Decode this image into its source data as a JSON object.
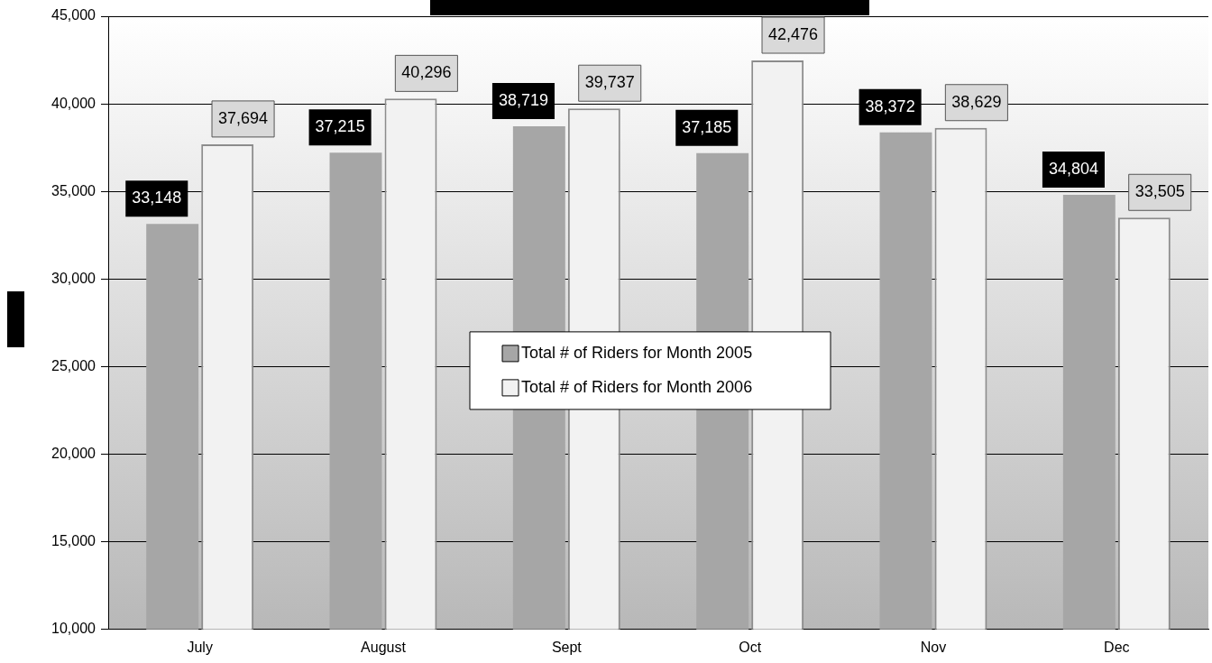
{
  "chart_data": {
    "type": "bar",
    "categories": [
      "July",
      "August",
      "Sept",
      "Oct",
      "Nov",
      "Dec"
    ],
    "series": [
      {
        "name": "Total # of Riders for Month 2005",
        "color": "#a6a6a6",
        "values": [
          33148,
          37215,
          38719,
          37185,
          38372,
          34804
        ],
        "value_labels": [
          "33,148",
          "37,215",
          "38,719",
          "37,185",
          "38,372",
          "34,804"
        ]
      },
      {
        "name": "Total # of Riders for Month 2006",
        "color": "#f2f2f2",
        "values": [
          37694,
          40296,
          39737,
          42476,
          38629,
          33505
        ],
        "value_labels": [
          "37,694",
          "40,296",
          "39,737",
          "42,476",
          "38,629",
          "33,505"
        ]
      }
    ],
    "ylim": [
      10000,
      45000
    ],
    "yticks": [
      {
        "value": 10000,
        "label": "10,000"
      },
      {
        "value": 15000,
        "label": "15,000"
      },
      {
        "value": 20000,
        "label": "20,000"
      },
      {
        "value": 25000,
        "label": "25,000"
      },
      {
        "value": 30000,
        "label": "30,000"
      },
      {
        "value": 35000,
        "label": "35,000"
      },
      {
        "value": 40000,
        "label": "40,000"
      },
      {
        "value": 45000,
        "label": "45,000"
      }
    ],
    "grid": "y",
    "legend": "center"
  }
}
